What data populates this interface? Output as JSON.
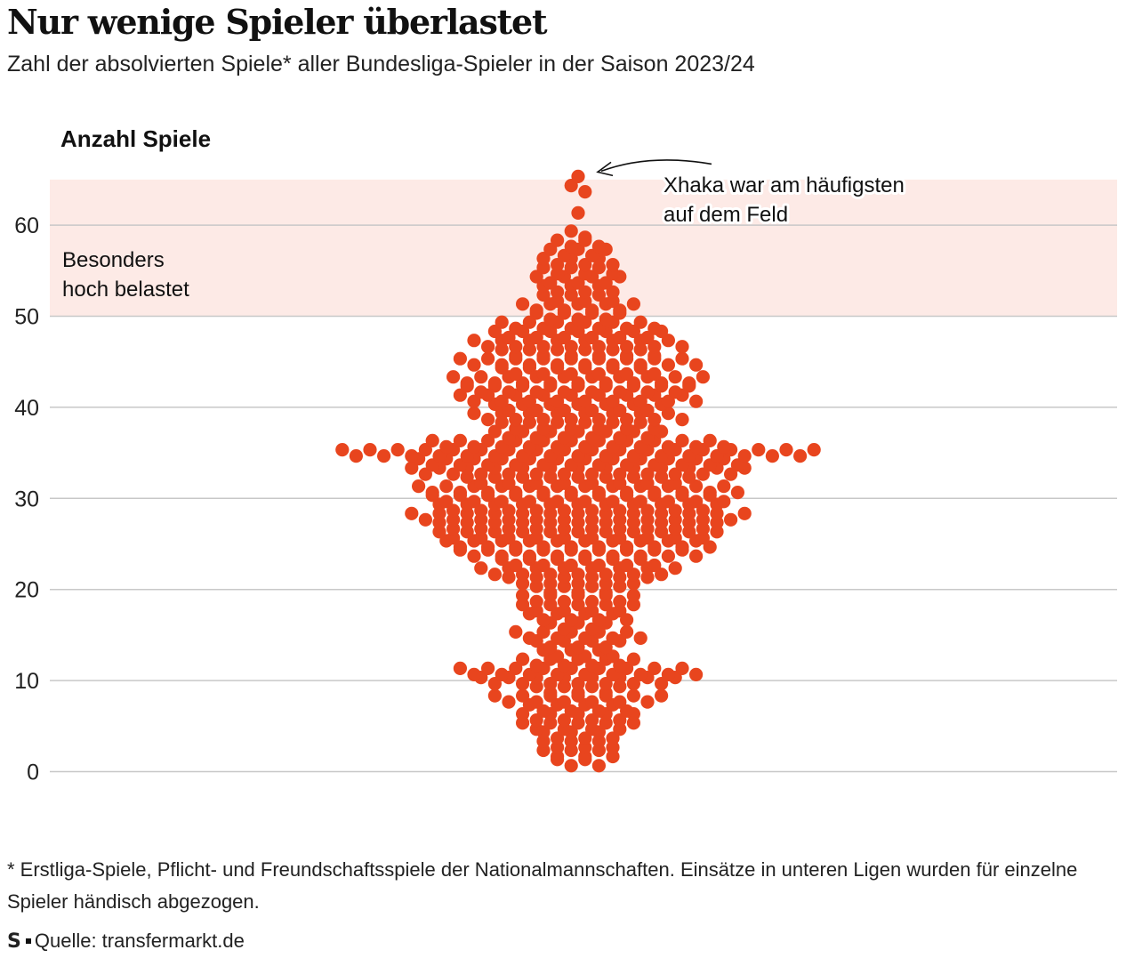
{
  "header": {
    "title": "Nur wenige Spieler überlastet",
    "subtitle": "Zahl der absolvierten Spiele* aller Bundesliga-Spieler in der Saison 2023/24"
  },
  "footer": {
    "footnote": "* Erstliga-Spiele, Pflicht- und Freundschaftsspiele der Nationalmannschaften. Einsätze in unteren Ligen wurden für einzelne Spieler händisch abgezogen.",
    "logo": "S",
    "source": "Quelle: transfermarkt.de"
  },
  "colors": {
    "dot": "#e8451e",
    "band": "#fdeae6",
    "grid": "#c8c8c8"
  },
  "chart_data": {
    "type": "beeswarm",
    "title": "Nur wenige Spieler überlastet",
    "ylabel": "Anzahl Spiele",
    "ylim": [
      0,
      65
    ],
    "yticks": [
      0,
      10,
      20,
      30,
      40,
      50,
      60
    ],
    "highlight_band": {
      "from": 50,
      "to": 65,
      "label_lines": [
        "Besonders",
        "hoch belastet"
      ]
    },
    "annotation": {
      "lines": [
        "Xhaka war am häufigsten",
        "auf dem Feld"
      ],
      "target_value": 65
    },
    "games": [
      1,
      2,
      3,
      4,
      5,
      6,
      7,
      8,
      9,
      10,
      11,
      12,
      13,
      14,
      15,
      16,
      17,
      18,
      19,
      20,
      21,
      22,
      23,
      24,
      25,
      26,
      27,
      28,
      29,
      30,
      31,
      32,
      33,
      34,
      35,
      36,
      37,
      38,
      39,
      40,
      41,
      42,
      43,
      44,
      45,
      46,
      47,
      48,
      49,
      50,
      51,
      52,
      53,
      54,
      55,
      56,
      57,
      58,
      59,
      61,
      64,
      65
    ],
    "players": [
      4,
      6,
      6,
      6,
      9,
      9,
      8,
      13,
      7,
      15,
      18,
      9,
      6,
      7,
      10,
      5,
      8,
      9,
      9,
      7,
      11,
      15,
      12,
      18,
      20,
      21,
      21,
      25,
      21,
      22,
      24,
      17,
      25,
      24,
      35,
      22,
      13,
      12,
      16,
      13,
      18,
      17,
      19,
      12,
      18,
      12,
      16,
      13,
      12,
      7,
      9,
      6,
      6,
      7,
      6,
      6,
      5,
      4,
      2,
      1,
      2,
      1
    ]
  }
}
